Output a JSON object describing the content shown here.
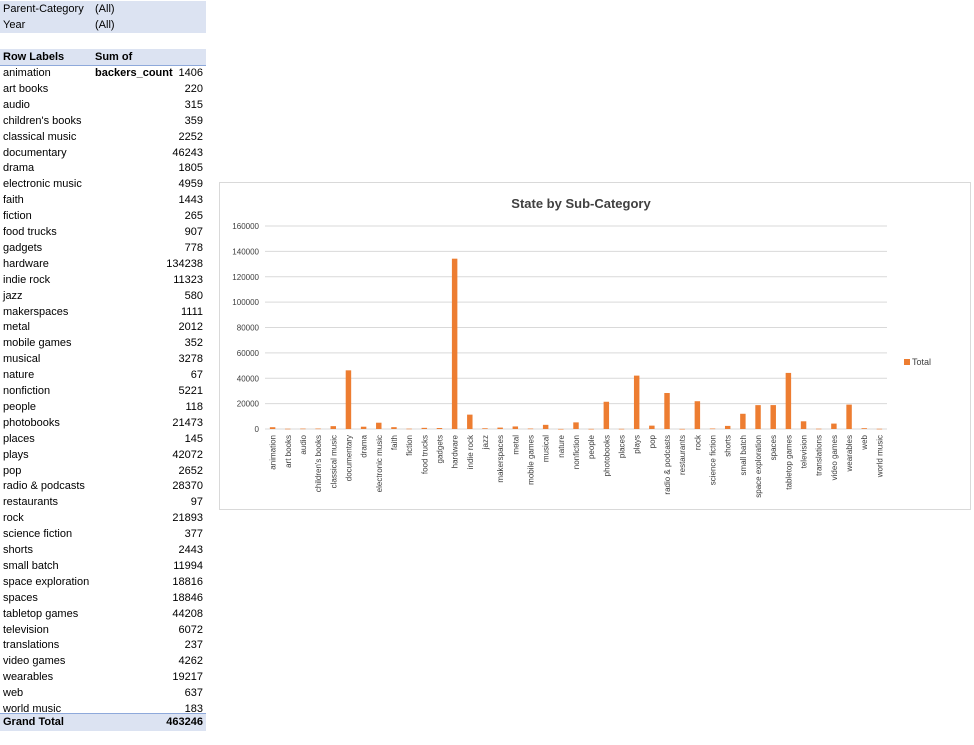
{
  "pivot": {
    "filters": [
      {
        "field": "Parent-Category",
        "value": "(All)"
      },
      {
        "field": "Year",
        "value": "(All)"
      }
    ],
    "header": {
      "row_labels": "Row Labels",
      "sum_label": "Sum of backers_count"
    },
    "rows": [
      {
        "label": "animation",
        "value": "1406"
      },
      {
        "label": "art books",
        "value": "220"
      },
      {
        "label": "audio",
        "value": "315"
      },
      {
        "label": "children's books",
        "value": "359"
      },
      {
        "label": "classical music",
        "value": "2252"
      },
      {
        "label": "documentary",
        "value": "46243"
      },
      {
        "label": "drama",
        "value": "1805"
      },
      {
        "label": "electronic music",
        "value": "4959"
      },
      {
        "label": "faith",
        "value": "1443"
      },
      {
        "label": "fiction",
        "value": "265"
      },
      {
        "label": "food trucks",
        "value": "907"
      },
      {
        "label": "gadgets",
        "value": "778"
      },
      {
        "label": "hardware",
        "value": "134238"
      },
      {
        "label": "indie rock",
        "value": "11323"
      },
      {
        "label": "jazz",
        "value": "580"
      },
      {
        "label": "makerspaces",
        "value": "1111"
      },
      {
        "label": "metal",
        "value": "2012"
      },
      {
        "label": "mobile games",
        "value": "352"
      },
      {
        "label": "musical",
        "value": "3278"
      },
      {
        "label": "nature",
        "value": "67"
      },
      {
        "label": "nonfiction",
        "value": "5221"
      },
      {
        "label": "people",
        "value": "118"
      },
      {
        "label": "photobooks",
        "value": "21473"
      },
      {
        "label": "places",
        "value": "145"
      },
      {
        "label": "plays",
        "value": "42072"
      },
      {
        "label": "pop",
        "value": "2652"
      },
      {
        "label": "radio & podcasts",
        "value": "28370"
      },
      {
        "label": "restaurants",
        "value": "97"
      },
      {
        "label": "rock",
        "value": "21893"
      },
      {
        "label": "science fiction",
        "value": "377"
      },
      {
        "label": "shorts",
        "value": "2443"
      },
      {
        "label": "small batch",
        "value": "11994"
      },
      {
        "label": "space exploration",
        "value": "18816"
      },
      {
        "label": "spaces",
        "value": "18846"
      },
      {
        "label": "tabletop games",
        "value": "44208"
      },
      {
        "label": "television",
        "value": "6072"
      },
      {
        "label": "translations",
        "value": "237"
      },
      {
        "label": "video games",
        "value": "4262"
      },
      {
        "label": "wearables",
        "value": "19217"
      },
      {
        "label": "web",
        "value": "637"
      },
      {
        "label": "world music",
        "value": "183"
      }
    ],
    "grand_total": {
      "label": "Grand Total",
      "value": "463246"
    }
  },
  "chart_data": {
    "type": "bar",
    "title": "State by Sub-Category",
    "xlabel": "",
    "ylabel": "",
    "ylim": [
      0,
      160000
    ],
    "yticks": [
      0,
      20000,
      40000,
      60000,
      80000,
      100000,
      120000,
      140000,
      160000
    ],
    "grid": true,
    "legend_position": "right",
    "color": "#ed7d31",
    "categories": [
      "animation",
      "art books",
      "audio",
      "children's books",
      "classical music",
      "documentary",
      "drama",
      "electronic music",
      "faith",
      "fiction",
      "food trucks",
      "gadgets",
      "hardware",
      "indie rock",
      "jazz",
      "makerspaces",
      "metal",
      "mobile games",
      "musical",
      "nature",
      "nonfiction",
      "people",
      "photobooks",
      "places",
      "plays",
      "pop",
      "radio & podcasts",
      "restaurants",
      "rock",
      "science fiction",
      "shorts",
      "small batch",
      "space exploration",
      "spaces",
      "tabletop games",
      "television",
      "translations",
      "video games",
      "wearables",
      "web",
      "world music"
    ],
    "series": [
      {
        "name": "Total",
        "values": [
          1406,
          220,
          315,
          359,
          2252,
          46243,
          1805,
          4959,
          1443,
          265,
          907,
          778,
          134238,
          11323,
          580,
          1111,
          2012,
          352,
          3278,
          67,
          5221,
          118,
          21473,
          145,
          42072,
          2652,
          28370,
          97,
          21893,
          377,
          2443,
          11994,
          18816,
          18846,
          44208,
          6072,
          237,
          4262,
          19217,
          637,
          183
        ]
      }
    ]
  }
}
